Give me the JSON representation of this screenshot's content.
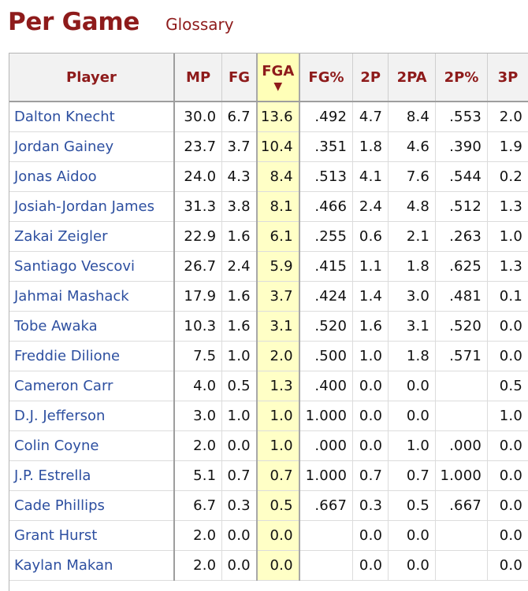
{
  "header": {
    "title": "Per Game",
    "glossary_label": "Glossary"
  },
  "table": {
    "sorted_column": "FGA",
    "sort_indicator_icon": "triangle-down-icon",
    "columns": [
      "Player",
      "MP",
      "FG",
      "FGA",
      "FG%",
      "2P",
      "2PA",
      "2P%",
      "3P"
    ],
    "rows": [
      {
        "player": "Dalton Knecht",
        "mp": "30.0",
        "fg": "6.7",
        "fga": "13.6",
        "fg_pct": ".492",
        "p2": "4.7",
        "p2a": "8.4",
        "p2_pct": ".553",
        "p3": "2.0"
      },
      {
        "player": "Jordan Gainey",
        "mp": "23.7",
        "fg": "3.7",
        "fga": "10.4",
        "fg_pct": ".351",
        "p2": "1.8",
        "p2a": "4.6",
        "p2_pct": ".390",
        "p3": "1.9"
      },
      {
        "player": "Jonas Aidoo",
        "mp": "24.0",
        "fg": "4.3",
        "fga": "8.4",
        "fg_pct": ".513",
        "p2": "4.1",
        "p2a": "7.6",
        "p2_pct": ".544",
        "p3": "0.2"
      },
      {
        "player": "Josiah-Jordan James",
        "mp": "31.3",
        "fg": "3.8",
        "fga": "8.1",
        "fg_pct": ".466",
        "p2": "2.4",
        "p2a": "4.8",
        "p2_pct": ".512",
        "p3": "1.3"
      },
      {
        "player": "Zakai Zeigler",
        "mp": "22.9",
        "fg": "1.6",
        "fga": "6.1",
        "fg_pct": ".255",
        "p2": "0.6",
        "p2a": "2.1",
        "p2_pct": ".263",
        "p3": "1.0"
      },
      {
        "player": "Santiago Vescovi",
        "mp": "26.7",
        "fg": "2.4",
        "fga": "5.9",
        "fg_pct": ".415",
        "p2": "1.1",
        "p2a": "1.8",
        "p2_pct": ".625",
        "p3": "1.3"
      },
      {
        "player": "Jahmai Mashack",
        "mp": "17.9",
        "fg": "1.6",
        "fga": "3.7",
        "fg_pct": ".424",
        "p2": "1.4",
        "p2a": "3.0",
        "p2_pct": ".481",
        "p3": "0.1"
      },
      {
        "player": "Tobe Awaka",
        "mp": "10.3",
        "fg": "1.6",
        "fga": "3.1",
        "fg_pct": ".520",
        "p2": "1.6",
        "p2a": "3.1",
        "p2_pct": ".520",
        "p3": "0.0"
      },
      {
        "player": "Freddie Dilione",
        "mp": "7.5",
        "fg": "1.0",
        "fga": "2.0",
        "fg_pct": ".500",
        "p2": "1.0",
        "p2a": "1.8",
        "p2_pct": ".571",
        "p3": "0.0"
      },
      {
        "player": "Cameron Carr",
        "mp": "4.0",
        "fg": "0.5",
        "fga": "1.3",
        "fg_pct": ".400",
        "p2": "0.0",
        "p2a": "0.0",
        "p2_pct": "",
        "p3": "0.5"
      },
      {
        "player": "D.J. Jefferson",
        "mp": "3.0",
        "fg": "1.0",
        "fga": "1.0",
        "fg_pct": "1.000",
        "p2": "0.0",
        "p2a": "0.0",
        "p2_pct": "",
        "p3": "1.0"
      },
      {
        "player": "Colin Coyne",
        "mp": "2.0",
        "fg": "0.0",
        "fga": "1.0",
        "fg_pct": ".000",
        "p2": "0.0",
        "p2a": "1.0",
        "p2_pct": ".000",
        "p3": "0.0"
      },
      {
        "player": "J.P. Estrella",
        "mp": "5.1",
        "fg": "0.7",
        "fga": "0.7",
        "fg_pct": "1.000",
        "p2": "0.7",
        "p2a": "0.7",
        "p2_pct": "1.000",
        "p3": "0.0"
      },
      {
        "player": "Cade Phillips",
        "mp": "6.7",
        "fg": "0.3",
        "fga": "0.5",
        "fg_pct": ".667",
        "p2": "0.3",
        "p2a": "0.5",
        "p2_pct": ".667",
        "p3": "0.0"
      },
      {
        "player": "Grant Hurst",
        "mp": "2.0",
        "fg": "0.0",
        "fga": "0.0",
        "fg_pct": "",
        "p2": "0.0",
        "p2a": "0.0",
        "p2_pct": "",
        "p3": "0.0"
      },
      {
        "player": "Kaylan Makan",
        "mp": "2.0",
        "fg": "0.0",
        "fga": "0.0",
        "fg_pct": "",
        "p2": "0.0",
        "p2a": "0.0",
        "p2_pct": "",
        "p3": "0.0"
      }
    ]
  },
  "colors": {
    "accent": "#8e1b1b",
    "link": "#2d4fa0",
    "sorted_bg": "#ffffc6",
    "header_bg": "#f2f2f2"
  }
}
